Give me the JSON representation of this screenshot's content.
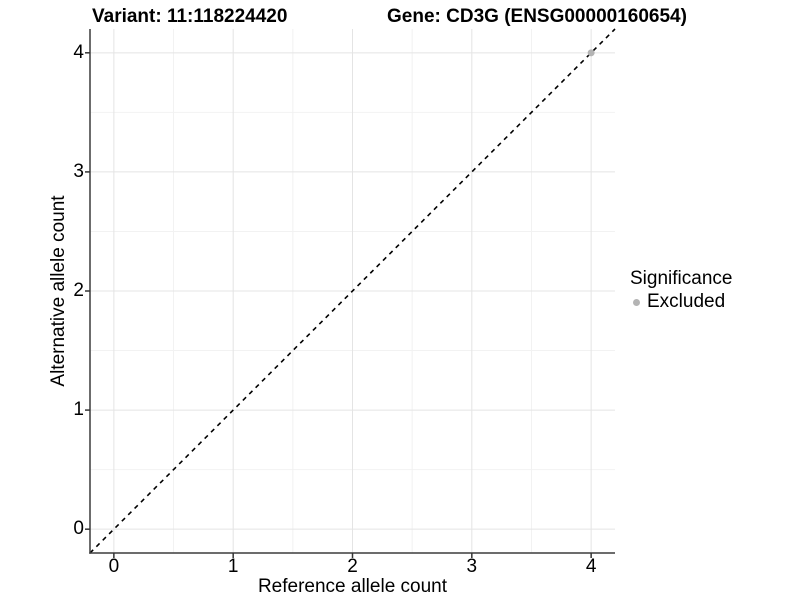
{
  "chart_data": {
    "type": "scatter",
    "titles": {
      "left": "Variant: 11:118224420",
      "right": "Gene: CD3G (ENSG00000160654)"
    },
    "xlabel": "Reference allele count",
    "ylabel": "Alternative allele count",
    "xlim": [
      -0.2,
      4.2
    ],
    "ylim": [
      -0.2,
      4.2
    ],
    "x_ticks": [
      0,
      1,
      2,
      3,
      4
    ],
    "y_ticks": [
      0,
      1,
      2,
      3,
      4
    ],
    "x_minor_ticks": [
      0.5,
      1.5,
      2.5,
      3.5
    ],
    "y_minor_ticks": [
      0.5,
      1.5,
      2.5,
      3.5
    ],
    "grid": "major+minor",
    "reference_line": {
      "kind": "identity",
      "from": [
        -0.2,
        -0.2
      ],
      "to": [
        4.2,
        4.2
      ],
      "style": "dashed",
      "color": "#000000"
    },
    "series": [
      {
        "name": "Excluded",
        "color": "#b4b4b4",
        "points": [
          {
            "x": 4,
            "y": 4
          }
        ]
      }
    ],
    "legend": {
      "title": "Significance",
      "position": "right",
      "entries": [
        {
          "label": "Excluded",
          "color": "#b4b4b4",
          "marker": "dot"
        }
      ]
    },
    "style": {
      "background": "#ffffff",
      "grid_major_color": "#e4e4e4",
      "grid_minor_color": "#f2f2f2",
      "axis_color": "#3c3c3c",
      "tick_color": "#333333",
      "text_color": "#000000",
      "point_color": "#b4b4b4"
    }
  }
}
